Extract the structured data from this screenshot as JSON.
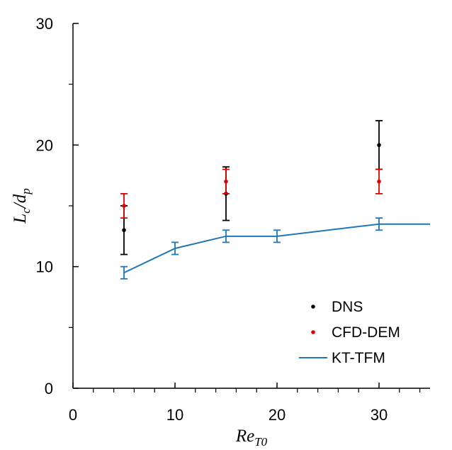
{
  "chart_data": {
    "type": "scatter",
    "xlabel": "Re",
    "xlabel_sub": "T0",
    "ylabel": "L",
    "ylabel_sub1": "c",
    "ylabel_mid": "/d",
    "ylabel_sub2": "p",
    "xlim": [
      0,
      35
    ],
    "ylim": [
      0,
      30
    ],
    "x_ticks": [
      0,
      10,
      20,
      30
    ],
    "y_ticks": [
      0,
      10,
      20,
      30
    ],
    "x_minor_step": 2,
    "y_minor_step": 5,
    "legend_position": "bottom-right",
    "series": [
      {
        "name": "DNS",
        "kind": "points",
        "color": "#000000",
        "points": [
          {
            "x": 5,
            "y": 13,
            "err_low": 11,
            "err_high": 15
          },
          {
            "x": 15,
            "y": 16,
            "err_low": 13.8,
            "err_high": 18.2
          },
          {
            "x": 30,
            "y": 20,
            "err_low": 18,
            "err_high": 22
          }
        ]
      },
      {
        "name": "CFD-DEM",
        "kind": "points",
        "color": "#e00000",
        "points": [
          {
            "x": 5,
            "y": 15,
            "err_low": 14,
            "err_high": 16
          },
          {
            "x": 15,
            "y": 17,
            "err_low": 16,
            "err_high": 18
          },
          {
            "x": 30,
            "y": 17,
            "err_low": 16,
            "err_high": 18
          }
        ]
      },
      {
        "name": "KT-TFM",
        "kind": "line",
        "color": "#1f77b4",
        "points": [
          {
            "x": 5,
            "y": 9.5,
            "err_low": 9,
            "err_high": 10
          },
          {
            "x": 10,
            "y": 11.5,
            "err_low": 11,
            "err_high": 12
          },
          {
            "x": 15,
            "y": 12.5,
            "err_low": 12,
            "err_high": 13
          },
          {
            "x": 20,
            "y": 12.5,
            "err_low": 12,
            "err_high": 13
          },
          {
            "x": 30,
            "y": 13.5,
            "err_low": 13,
            "err_high": 14
          },
          {
            "x": 35,
            "y": 13.5
          }
        ]
      }
    ]
  }
}
